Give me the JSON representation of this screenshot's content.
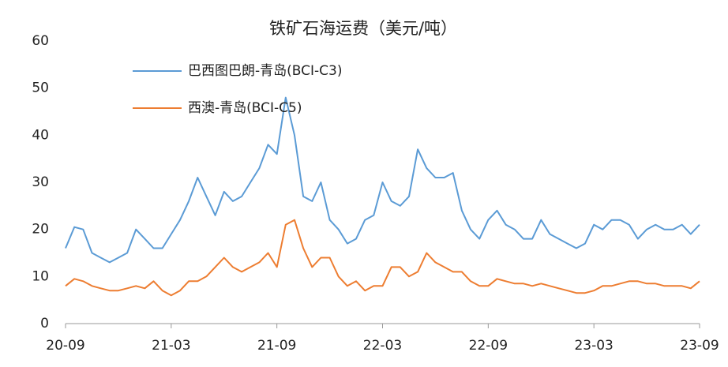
{
  "chart_data": {
    "type": "line",
    "title": "铁矿石海运费（美元/吨）",
    "categories": [
      "20-09",
      null,
      null,
      null,
      null,
      null,
      null,
      null,
      null,
      null,
      null,
      null,
      "21-03",
      null,
      null,
      null,
      null,
      null,
      null,
      null,
      null,
      null,
      null,
      null,
      "21-09",
      null,
      null,
      null,
      null,
      null,
      null,
      null,
      null,
      null,
      null,
      null,
      "22-03",
      null,
      null,
      null,
      null,
      null,
      null,
      null,
      null,
      null,
      null,
      null,
      "22-09",
      null,
      null,
      null,
      null,
      null,
      null,
      null,
      null,
      null,
      null,
      null,
      "23-03",
      null,
      null,
      null,
      null,
      null,
      null,
      null,
      null,
      null,
      null,
      null,
      "23-09"
    ],
    "series": [
      {
        "name": "巴西图巴朗-青岛(BCI-C3)",
        "color": "#5b9bd5",
        "values": [
          16,
          20.5,
          20,
          15,
          14,
          13,
          14,
          15,
          20,
          18,
          16,
          16,
          19,
          22,
          26,
          31,
          27,
          23,
          28,
          26,
          27,
          30,
          33,
          38,
          36,
          48,
          40,
          27,
          26,
          30,
          22,
          20,
          17,
          18,
          22,
          23,
          30,
          26,
          25,
          27,
          37,
          33,
          31,
          31,
          32,
          24,
          20,
          18,
          22,
          24,
          21,
          20,
          18,
          18,
          22,
          19,
          18,
          17,
          16,
          17,
          21,
          20,
          22,
          22,
          21,
          18,
          20,
          21,
          20,
          20,
          21,
          19,
          21
        ]
      },
      {
        "name": "西澳-青岛(BCI-C5)",
        "color": "#ed7d31",
        "values": [
          8,
          9.5,
          9,
          8,
          7.5,
          7,
          7,
          7.5,
          8,
          7.5,
          9,
          7,
          6,
          7,
          9,
          9,
          10,
          12,
          14,
          12,
          11,
          12,
          13,
          15,
          12,
          21,
          22,
          16,
          12,
          14,
          14,
          10,
          8,
          9,
          7,
          8,
          8,
          12,
          12,
          10,
          11,
          15,
          13,
          12,
          11,
          11,
          9,
          8,
          8,
          9.5,
          9,
          8.5,
          8.5,
          8,
          8.5,
          8,
          7.5,
          7,
          6.5,
          6.5,
          7,
          8,
          8,
          8.5,
          9,
          9,
          8.5,
          8.5,
          8,
          8,
          8,
          7.5,
          9
        ]
      }
    ],
    "ylim": [
      0,
      60
    ],
    "yticks": [
      0,
      10,
      20,
      30,
      40,
      50,
      60
    ],
    "grid": false,
    "legend": "upper left"
  }
}
